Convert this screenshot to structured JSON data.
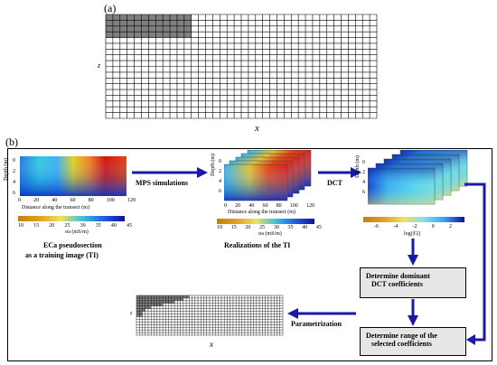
{
  "panel_a": {
    "label": "(a)",
    "y_axis_label": "z",
    "x_axis_label": "x",
    "grid": {
      "cols": 38,
      "rows": 18,
      "shaded_cols": 12,
      "shaded_rows": 4
    }
  },
  "panel_b": {
    "label": "(b)",
    "training_image": {
      "y_axis_label": "Depth (m)",
      "y_ticks": [
        "0",
        "2",
        "4",
        "6"
      ],
      "x_ticks": [
        "0",
        "20",
        "40",
        "60",
        "80",
        "100",
        "120"
      ],
      "x_axis_label": "Distance along the transect (m)",
      "colorbar_ticks": [
        "10",
        "15",
        "20",
        "25",
        "30",
        "35",
        "40",
        "45"
      ],
      "colorbar_label": "σa (mS/m)",
      "caption_line1": "ECa pseudosection",
      "caption_line2": "as a training image (TI)"
    },
    "arrow_mps": "MPS simulations",
    "realizations": {
      "y_axis_label": "Depth (m)",
      "y_ticks": [
        "0",
        "2",
        "4",
        "6"
      ],
      "x_ticks": [
        "0",
        "20",
        "40",
        "60",
        "80",
        "100",
        "120"
      ],
      "x_axis_label": "Distance along the transect (m)",
      "colorbar_ticks": [
        "10",
        "15",
        "20",
        "25",
        "30",
        "35",
        "40",
        "45"
      ],
      "colorbar_label": "σa (mS/m)",
      "caption": "Realizations of the TI"
    },
    "arrow_dct": "DCT",
    "dct": {
      "y_axis_label": "Depth (m)",
      "y_ticks": [
        "0",
        "2",
        "4",
        "6"
      ],
      "colorbar_ticks": [
        "-6",
        "-4",
        "-2",
        "0",
        "2"
      ],
      "colorbar_label": "log(|G|)"
    },
    "box_dominant_line1": "Determine dominant",
    "box_dominant_line2": "DCT coefficients",
    "box_range_line1": "Determine range of the",
    "box_range_line2": "selected coefficients",
    "arrow_param": "Parametrization",
    "param_grid": {
      "y_axis_label": "z",
      "x_axis_label": "x",
      "cols": 50,
      "rows": 15
    },
    "colors": {
      "arrow": "#1a1aa6",
      "box_fill": "#e6e6e6",
      "grid_shade": "#7f7f7f"
    }
  }
}
